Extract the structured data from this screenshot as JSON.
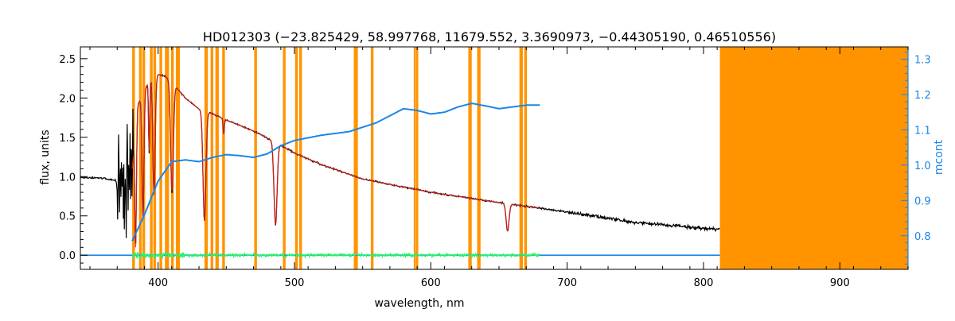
{
  "chart_data": {
    "type": "line",
    "title": "HD012303   (−23.825429, 58.997768, 11679.552, 3.3690973, −0.44305190, 0.46510556)",
    "xlabel": "wavelength, nm",
    "ylabel": "flux, units",
    "y2label": "mcont",
    "xlim": [
      343,
      950
    ],
    "ylim": [
      -0.18,
      2.65
    ],
    "y2lim": [
      0.705,
      1.335
    ],
    "xticks": [
      400,
      500,
      600,
      700,
      800,
      900
    ],
    "yticks": [
      0.0,
      0.5,
      1.0,
      1.5,
      2.0,
      2.5
    ],
    "y2ticks": [
      0.8,
      0.9,
      1.0,
      1.1,
      1.2,
      1.3
    ],
    "xtick_labels": [
      "400",
      "500",
      "600",
      "700",
      "800",
      "900"
    ],
    "ytick_labels": [
      "0.0",
      "0.5",
      "1.0",
      "1.5",
      "2.0",
      "2.5"
    ],
    "y2tick_labels": [
      "0.8",
      "0.9",
      "1.0",
      "1.1",
      "1.2",
      "1.3"
    ],
    "grid": false,
    "colors": {
      "spectrum": "#000000",
      "model": "#e8231b",
      "residual": "#2df06e",
      "mcont": "#1a86e8",
      "mask": "#ff9400",
      "axis": "#000000",
      "y2axis": "#1a86e8"
    },
    "mask_bands": [
      [
        381,
        383
      ],
      [
        386,
        388
      ],
      [
        388.5,
        390.5
      ],
      [
        394,
        396
      ],
      [
        396.5,
        398.5
      ],
      [
        401,
        403
      ],
      [
        405,
        408
      ],
      [
        409.5,
        411.5
      ],
      [
        413,
        415
      ],
      [
        414.5,
        416
      ],
      [
        434,
        436.5
      ],
      [
        438.5,
        440.5
      ],
      [
        442,
        444.5
      ],
      [
        447,
        449
      ],
      [
        470.5,
        472.5
      ],
      [
        491.5,
        493.5
      ],
      [
        500.5,
        502.5
      ],
      [
        503.5,
        505.5
      ],
      [
        543.5,
        546.5
      ],
      [
        556,
        558
      ],
      [
        587.5,
        589
      ],
      [
        589.2,
        590.8
      ],
      [
        627.5,
        630
      ],
      [
        634,
        636.5
      ],
      [
        665,
        667.5
      ],
      [
        668.5,
        670.5
      ],
      [
        812,
        950
      ]
    ],
    "continuum": {
      "x": [
        343,
        360,
        372,
        380,
        385,
        390,
        395,
        400,
        405,
        410,
        420,
        430,
        440,
        450,
        470,
        490,
        500,
        520,
        550,
        570,
        600,
        650,
        700,
        750,
        800,
        812
      ],
      "y": [
        0.99,
        0.98,
        0.94,
        0.9,
        1.9,
        2.1,
        2.25,
        2.3,
        2.28,
        2.2,
        2.0,
        1.86,
        1.8,
        1.72,
        1.58,
        1.4,
        1.3,
        1.15,
        0.97,
        0.9,
        0.8,
        0.67,
        0.55,
        0.42,
        0.34,
        0.33
      ]
    },
    "absorption_lines": [
      {
        "x": 383.5,
        "depth": 1.5,
        "width": 0.8
      },
      {
        "x": 388.9,
        "depth": 1.6,
        "width": 1.0
      },
      {
        "x": 393.4,
        "depth": 0.9,
        "width": 0.6
      },
      {
        "x": 397.0,
        "depth": 1.5,
        "width": 1.2
      },
      {
        "x": 410.2,
        "depth": 1.4,
        "width": 1.4
      },
      {
        "x": 434.0,
        "depth": 1.4,
        "width": 1.5
      },
      {
        "x": 448.1,
        "depth": 0.2,
        "width": 0.6
      },
      {
        "x": 486.1,
        "depth": 1.05,
        "width": 1.6
      },
      {
        "x": 656.3,
        "depth": 0.35,
        "width": 1.5
      }
    ],
    "model_range": [
      381,
      680
    ],
    "residual": {
      "x_range": [
        381,
        680
      ],
      "level": 0.0,
      "amplitude": 0.04,
      "line_x_range": [
        343,
        812
      ]
    },
    "mcont": {
      "x": [
        381,
        390,
        400,
        410,
        420,
        430,
        440,
        450,
        460,
        470,
        480,
        490,
        500,
        520,
        540,
        560,
        580,
        590,
        600,
        610,
        620,
        630,
        640,
        650,
        660,
        670,
        680
      ],
      "y": [
        0.785,
        0.86,
        0.955,
        1.01,
        1.015,
        1.01,
        1.022,
        1.03,
        1.027,
        1.022,
        1.032,
        1.055,
        1.07,
        1.085,
        1.095,
        1.12,
        1.16,
        1.155,
        1.145,
        1.15,
        1.165,
        1.175,
        1.168,
        1.16,
        1.165,
        1.17,
        1.17
      ]
    }
  }
}
